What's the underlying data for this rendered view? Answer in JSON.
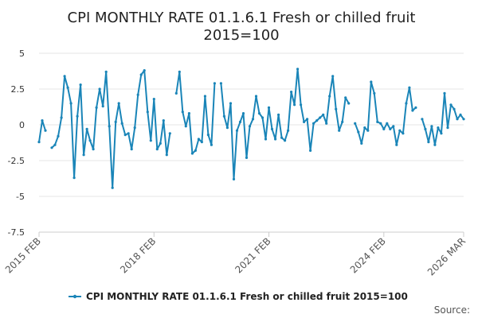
{
  "chart_data": {
    "type": "line",
    "title_line1": "CPI MONTHLY RATE 01.1.6.1 Fresh or chilled fruit",
    "title_line2": "2015=100",
    "y_ticks": [
      "5",
      "2.5",
      "0",
      "-2.5",
      "-5",
      "-7.5"
    ],
    "y_tick_values": [
      5,
      2.5,
      0,
      -2.5,
      -5,
      -7.5
    ],
    "ylim": [
      -7.5,
      5
    ],
    "x_ticks": [
      "2015 FEB",
      "2018 FEB",
      "2021 FEB",
      "2024 FEB",
      "2026 MAR"
    ],
    "x_tick_indices": [
      0,
      36,
      72,
      108,
      133
    ],
    "x_start": "2015 FEB",
    "x_end": "2026 MAR",
    "series": [
      {
        "name": "CPI MONTHLY RATE 01.1.6.1 Fresh or chilled fruit 2015=100",
        "color": "#1a85b8",
        "values": [
          -1.2,
          0.3,
          -0.4,
          null,
          -1.6,
          -1.4,
          -0.8,
          0.5,
          3.4,
          2.6,
          1.5,
          -3.7,
          0.6,
          2.8,
          -2.1,
          -0.3,
          -1.1,
          -1.7,
          1.2,
          2.5,
          1.3,
          3.7,
          -0.1,
          -4.4,
          0.2,
          1.5,
          0.1,
          -0.7,
          -0.6,
          -1.7,
          -0.2,
          2.1,
          3.5,
          3.8,
          0.9,
          -1.1,
          1.8,
          -1.7,
          -1.3,
          0.3,
          -2.1,
          -0.6,
          null,
          2.2,
          3.7,
          0.9,
          -0.1,
          0.8,
          -2.0,
          -1.8,
          -1.0,
          -1.2,
          2.0,
          -0.7,
          -1.4,
          2.9,
          null,
          2.9,
          0.6,
          -0.2,
          1.5,
          -3.8,
          -0.4,
          0.2,
          0.8,
          -2.3,
          -0.1,
          0.4,
          2.0,
          0.8,
          0.5,
          -1.0,
          1.2,
          -0.3,
          -1.0,
          0.7,
          -0.9,
          -1.1,
          -0.4,
          2.3,
          1.4,
          3.9,
          1.4,
          0.2,
          0.4,
          -1.8,
          0.1,
          0.3,
          0.5,
          0.7,
          0.1,
          2.0,
          3.4,
          1.1,
          -0.4,
          0.2,
          1.9,
          1.5,
          null,
          0.1,
          -0.5,
          -1.3,
          -0.2,
          -0.4,
          3.0,
          2.2,
          0.2,
          0.1,
          -0.3,
          0.1,
          -0.3,
          -0.1,
          -1.4,
          -0.4,
          -0.6,
          1.5,
          2.6,
          1.0,
          1.2,
          null,
          0.4,
          -0.3,
          -1.2,
          -0.1,
          -1.4,
          -0.2,
          -0.6,
          2.2,
          -0.2,
          1.4,
          1.1,
          0.4,
          0.7,
          0.4
        ]
      }
    ],
    "legend_label": "CPI MONTHLY RATE 01.1.6.1 Fresh or chilled fruit 2015=100",
    "legend_position": "bottom-center",
    "source_label": "Source:"
  }
}
